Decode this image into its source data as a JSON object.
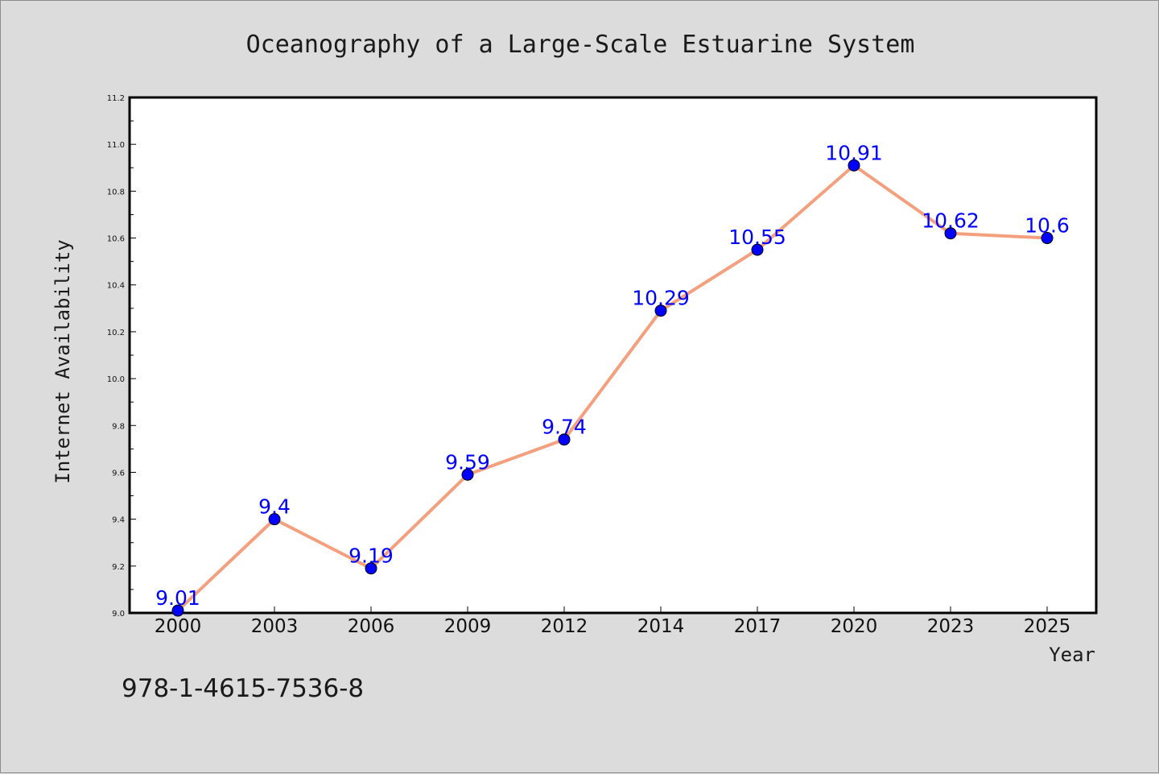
{
  "chart_data": {
    "type": "line",
    "title": "Oceanography of a Large-Scale Estuarine System",
    "xlabel": "Year",
    "ylabel": "Internet Availability",
    "categories": [
      "2000",
      "2003",
      "2006",
      "2009",
      "2012",
      "2014",
      "2017",
      "2020",
      "2023",
      "2025"
    ],
    "values": [
      9.01,
      9.4,
      9.19,
      9.59,
      9.74,
      10.29,
      10.55,
      10.91,
      10.62,
      10.6
    ],
    "data_labels": [
      "9.01",
      "9.4",
      "9.19",
      "9.59",
      "9.74",
      "10.29",
      "10.55",
      "10.91",
      "10.62",
      "10.6"
    ],
    "ylim": [
      9.0,
      11.2
    ],
    "yticks": [
      "9.0",
      "9.2",
      "9.4",
      "9.6",
      "9.8",
      "10.0",
      "10.2",
      "10.4",
      "10.6",
      "10.8",
      "11.0",
      "11.2"
    ],
    "grid": false,
    "legend": "none",
    "line_color": "#f4a07e",
    "marker_color": "#0000ff",
    "label_color": "#0000ff",
    "plot_background": "#ffffff",
    "figure_background": "#dcdcdc"
  },
  "footer": {
    "isbn": "978-1-4615-7536-8"
  }
}
